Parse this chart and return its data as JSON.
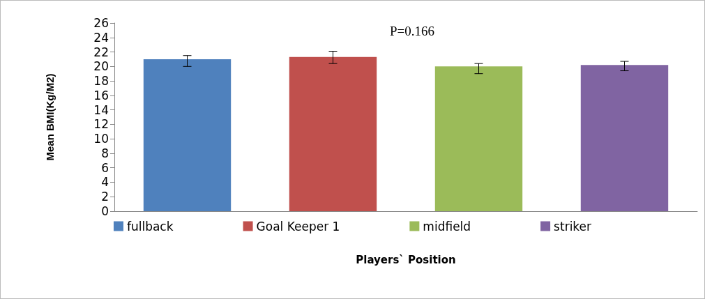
{
  "chart_data": {
    "type": "bar",
    "categories": [
      null,
      null,
      null,
      null
    ],
    "series": [
      {
        "name": "fullback",
        "color": "#4f81bd",
        "values": [
          21.0,
          null,
          null,
          null
        ],
        "errors": [
          [
            20.0,
            21.5
          ],
          null,
          null,
          null
        ]
      },
      {
        "name": "Goal Keeper 1",
        "color": "#c0504d",
        "values": [
          null,
          21.3,
          null,
          null
        ],
        "errors": [
          null,
          [
            20.4,
            22.1
          ],
          null,
          null
        ]
      },
      {
        "name": "midfield",
        "color": "#9bbb59",
        "values": [
          null,
          null,
          20.0,
          null
        ],
        "errors": [
          null,
          null,
          [
            19.0,
            20.4
          ],
          null
        ]
      },
      {
        "name": "striker",
        "color": "#8064a2",
        "values": [
          null,
          null,
          null,
          20.2
        ],
        "errors": [
          null,
          null,
          null,
          [
            19.4,
            20.7
          ]
        ]
      }
    ],
    "ylim": [
      0,
      26
    ],
    "yticks": [
      0,
      2,
      4,
      6,
      8,
      10,
      12,
      14,
      16,
      18,
      20,
      22,
      24,
      26
    ],
    "ylabel": "Mean BMI(Kg/M2)",
    "xlabel": "Players` Position",
    "annotations": [
      "P=0.166"
    ],
    "legend": "bottom",
    "grid": false
  }
}
